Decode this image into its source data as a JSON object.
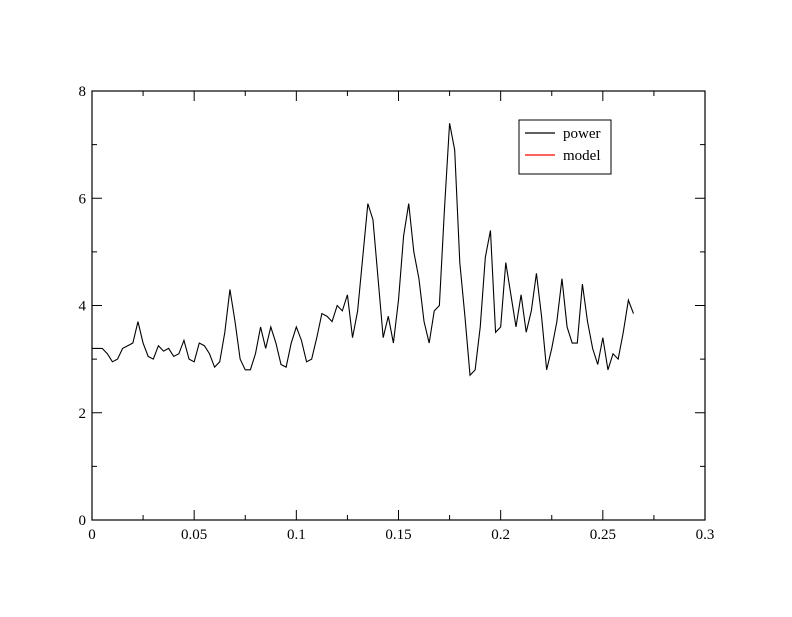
{
  "chart_data": {
    "type": "line",
    "x": [
      0,
      0.0025,
      0.005,
      0.0075,
      0.01,
      0.0125,
      0.015,
      0.0175,
      0.02,
      0.0225,
      0.025,
      0.0275,
      0.03,
      0.0325,
      0.035,
      0.0375,
      0.04,
      0.0425,
      0.045,
      0.0475,
      0.05,
      0.0525,
      0.055,
      0.0575,
      0.06,
      0.0625,
      0.065,
      0.0675,
      0.07,
      0.0725,
      0.075,
      0.0775,
      0.08,
      0.0825,
      0.085,
      0.0875,
      0.09,
      0.0925,
      0.095,
      0.0975,
      0.1,
      0.1025,
      0.105,
      0.1075,
      0.11,
      0.1125,
      0.115,
      0.1175,
      0.12,
      0.1225,
      0.125,
      0.1275,
      0.13,
      0.1325,
      0.135,
      0.1375,
      0.14,
      0.1425,
      0.145,
      0.1475,
      0.15,
      0.1525,
      0.155,
      0.1575,
      0.16,
      0.1625,
      0.165,
      0.1675,
      0.17,
      0.1725,
      0.175,
      0.1775,
      0.18,
      0.1825,
      0.185,
      0.1875,
      0.19,
      0.1925,
      0.195,
      0.1975,
      0.2,
      0.2025,
      0.205,
      0.2075,
      0.21,
      0.2125,
      0.215,
      0.2175,
      0.22,
      0.2225,
      0.225,
      0.2275,
      0.23,
      0.2325,
      0.235,
      0.2375,
      0.24,
      0.2425,
      0.245,
      0.2475,
      0.25,
      0.2525,
      0.255,
      0.2575,
      0.26,
      0.2625,
      0.265
    ],
    "series": [
      {
        "name": "power",
        "color": "#000000",
        "values": [
          3.2,
          3.2,
          3.2,
          3.1,
          2.95,
          3.0,
          3.2,
          3.25,
          3.3,
          3.7,
          3.3,
          3.05,
          3.0,
          3.25,
          3.15,
          3.2,
          3.05,
          3.1,
          3.35,
          3.0,
          2.95,
          3.3,
          3.25,
          3.1,
          2.85,
          2.95,
          3.5,
          4.3,
          3.7,
          3.0,
          2.8,
          2.8,
          3.1,
          3.6,
          3.2,
          3.6,
          3.3,
          2.9,
          2.85,
          3.3,
          3.6,
          3.35,
          2.95,
          3.0,
          3.4,
          3.85,
          3.8,
          3.7,
          4.0,
          3.9,
          4.2,
          3.4,
          3.9,
          4.9,
          5.9,
          5.6,
          4.5,
          3.4,
          3.8,
          3.3,
          4.1,
          5.3,
          5.9,
          5.0,
          4.5,
          3.7,
          3.3,
          3.9,
          4.0,
          5.8,
          7.4,
          6.9,
          4.8,
          3.8,
          2.7,
          2.8,
          3.6,
          4.9,
          5.4,
          3.5,
          3.6,
          4.8,
          4.2,
          3.6,
          4.2,
          3.5,
          3.9,
          4.6,
          3.8,
          2.8,
          3.2,
          3.7,
          4.5,
          3.6,
          3.3,
          3.3,
          4.4,
          3.7,
          3.2,
          2.9,
          3.4,
          2.8,
          3.1,
          3.0,
          3.5,
          4.1,
          3.85
        ]
      },
      {
        "name": "model",
        "color": "#ff0000",
        "values": [
          null,
          null,
          null,
          null,
          null,
          null,
          null,
          null,
          null,
          null,
          null,
          null,
          null,
          null,
          null,
          null,
          null,
          null,
          null,
          null,
          null,
          null,
          null,
          null,
          null,
          null,
          null,
          null,
          null,
          null,
          null,
          null,
          null,
          null,
          null,
          null,
          null,
          null,
          null,
          null,
          null,
          null,
          null,
          null,
          null,
          null,
          null,
          null,
          null,
          null,
          null,
          null,
          null,
          null,
          null,
          null,
          null,
          null,
          null,
          null,
          null,
          null,
          null,
          null,
          null,
          null,
          null,
          null,
          null,
          null,
          null,
          null,
          null,
          null,
          null,
          null,
          null,
          null,
          null,
          null,
          null,
          null,
          null,
          null,
          null,
          null,
          null,
          null,
          null,
          null,
          null,
          null,
          null,
          null,
          null,
          null,
          null,
          null,
          null,
          null,
          null,
          null,
          null,
          null,
          null,
          null,
          null
        ]
      }
    ],
    "xlim": [
      0,
      0.3
    ],
    "xticks": [
      0,
      0.05,
      0.1,
      0.15,
      0.2,
      0.25,
      0.3
    ],
    "xminorticks": [
      0.025,
      0.075,
      0.125,
      0.175,
      0.225,
      0.275
    ],
    "ylim": [
      0,
      8
    ],
    "yticks": [
      0,
      2,
      4,
      6,
      8
    ],
    "yminorticks": [
      1,
      3,
      5,
      7
    ],
    "legend": "upper right"
  }
}
